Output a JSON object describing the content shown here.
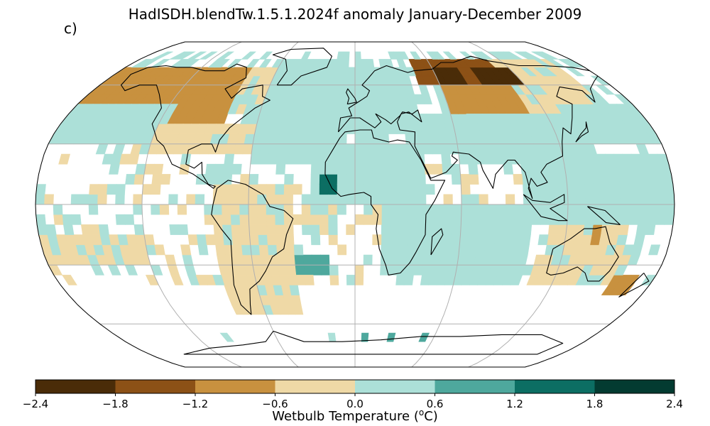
{
  "title": "HadISDH.blendTw.1.5.1.2024f anomaly January-December 2009",
  "panel_label": "c)",
  "colorbar": {
    "label_prefix": "Wetbulb Temperature (",
    "label_sup": "o",
    "label_suffix": "C)",
    "ticks": [
      "−2.4",
      "−1.8",
      "−1.2",
      "−0.6",
      "0.0",
      "0.6",
      "1.2",
      "1.8",
      "2.4"
    ],
    "levels": [
      -2.4,
      -1.8,
      -1.2,
      -0.6,
      0.0,
      0.6,
      1.2,
      1.8,
      2.4
    ],
    "colors": [
      "#4a2c08",
      "#8c5116",
      "#c8913f",
      "#efd9a6",
      "#ace0d8",
      "#4ea89d",
      "#0c6e63",
      "#033b31"
    ]
  },
  "chart_data": {
    "type": "heatmap",
    "projection": "robinson",
    "grid_resolution_deg": 5,
    "land_palette_note_free": true,
    "bins": [
      {
        "range": [
          -2.4,
          -1.8
        ],
        "color": "#4a2c08"
      },
      {
        "range": [
          -1.8,
          -1.2
        ],
        "color": "#8c5116"
      },
      {
        "range": [
          -1.2,
          -0.6
        ],
        "color": "#c8913f"
      },
      {
        "range": [
          -0.6,
          0.0
        ],
        "color": "#efd9a6"
      },
      {
        "range": [
          0.0,
          0.6
        ],
        "color": "#ace0d8"
      },
      {
        "range": [
          0.6,
          1.2
        ],
        "color": "#4ea89d"
      },
      {
        "range": [
          1.2,
          1.8
        ],
        "color": "#0c6e63"
      },
      {
        "range": [
          1.8,
          2.4
        ],
        "color": "#033b31"
      }
    ],
    "regions": [
      {
        "lon": [
          -180,
          -115
        ],
        "lat": [
          50,
          70
        ],
        "bin": 2
      },
      {
        "lon": [
          -115,
          -80
        ],
        "lat": [
          40,
          70
        ],
        "bin": 2
      },
      {
        "lon": [
          -80,
          -55
        ],
        "lat": [
          45,
          70
        ],
        "bin": 3
      },
      {
        "lon": [
          -130,
          -60
        ],
        "lat": [
          25,
          40
        ],
        "bin": 3
      },
      {
        "lon": [
          -180,
          -120
        ],
        "lat": [
          30,
          50
        ],
        "bin": 4
      },
      {
        "lon": [
          -60,
          -10
        ],
        "lat": [
          20,
          75
        ],
        "bin": 4
      },
      {
        "lon": [
          -10,
          40
        ],
        "lat": [
          35,
          70
        ],
        "bin": 4
      },
      {
        "lon": [
          40,
          70
        ],
        "lat": [
          25,
          45
        ],
        "bin": 4
      },
      {
        "lon": [
          45,
          110
        ],
        "lat": [
          60,
          75
        ],
        "bin": 1
      },
      {
        "lon": [
          60,
          130
        ],
        "lat": [
          45,
          60
        ],
        "bin": 2
      },
      {
        "lon": [
          110,
          160
        ],
        "lat": [
          45,
          75
        ],
        "bin": 3
      },
      {
        "lon": [
          130,
          180
        ],
        "lat": [
          30,
          50
        ],
        "bin": 4
      },
      {
        "lon": [
          60,
          140
        ],
        "lat": [
          20,
          45
        ],
        "bin": 4
      },
      {
        "lon": [
          -25,
          40
        ],
        "lat": [
          0,
          30
        ],
        "bin": 4
      },
      {
        "lon": [
          -80,
          -35
        ],
        "lat": [
          -55,
          10
        ],
        "bin": 3
      },
      {
        "lon": [
          110,
          155
        ],
        "lat": [
          -40,
          -10
        ],
        "bin": 3
      },
      {
        "lon": [
          95,
          180
        ],
        "lat": [
          -10,
          25
        ],
        "bin": 4
      },
      {
        "lon": [
          15,
          40
        ],
        "lat": [
          -35,
          0
        ],
        "bin": 4
      },
      {
        "lon": [
          40,
          100
        ],
        "lat": [
          -40,
          0
        ],
        "bin": 4
      },
      {
        "lon": [
          -180,
          -120
        ],
        "lat": [
          -30,
          -15
        ],
        "bin": 3
      },
      {
        "lon": [
          -35,
          -15
        ],
        "lat": [
          -35,
          -25
        ],
        "bin": 5
      },
      {
        "lon": [
          -20,
          -10
        ],
        "lat": [
          5,
          15
        ],
        "bin": 6
      },
      {
        "lon": [
          135,
          140
        ],
        "lat": [
          -20,
          -10
        ],
        "bin": 2
      },
      {
        "lon": [
          155,
          170
        ],
        "lat": [
          -45,
          -35
        ],
        "bin": 2
      },
      {
        "lon": [
          90,
          120
        ],
        "lat": [
          60,
          70
        ],
        "bin": 0
      },
      {
        "lon": [
          60,
          80
        ],
        "lat": [
          60,
          70
        ],
        "bin": 0
      }
    ],
    "graticule": {
      "lon_step": 60,
      "lat_step": 30
    }
  }
}
